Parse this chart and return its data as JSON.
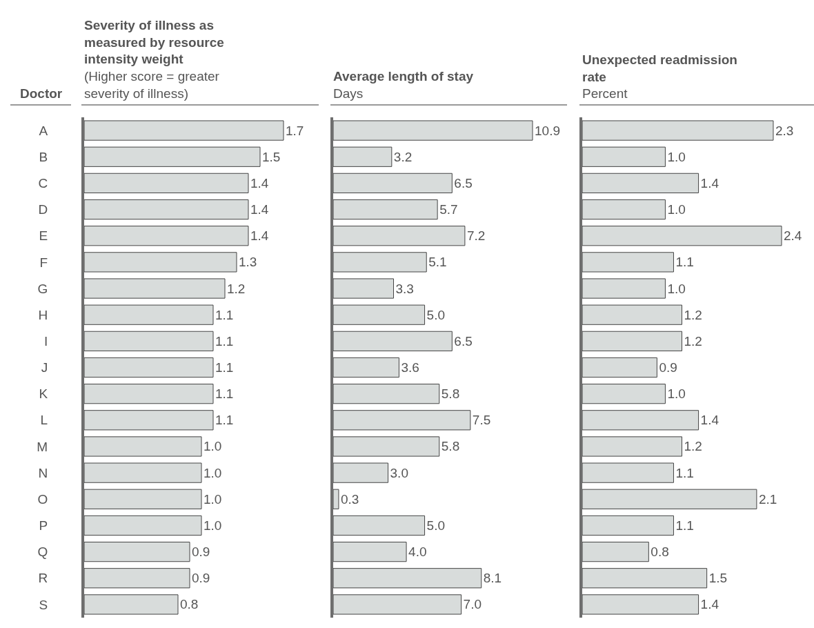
{
  "chart_data": [
    {
      "type": "bar",
      "orientation": "horizontal",
      "title": "Severity of illness as measured by resource intensity weight",
      "subtitle": "(Higher score = greater severity of illness)",
      "ylabel": "Doctor",
      "tick_labels": "y",
      "color": "#d8dcdb",
      "categories": [
        "A",
        "B",
        "C",
        "D",
        "E",
        "F",
        "G",
        "H",
        "I",
        "J",
        "K",
        "L",
        "M",
        "N",
        "O",
        "P",
        "Q",
        "R",
        "S"
      ],
      "values": [
        1.7,
        1.5,
        1.4,
        1.4,
        1.4,
        1.3,
        1.2,
        1.1,
        1.1,
        1.1,
        1.1,
        1.1,
        1.0,
        1.0,
        1.0,
        1.0,
        0.9,
        0.9,
        0.8
      ],
      "value_labels": [
        "1.7",
        "1.5",
        "1.4",
        "1.4",
        "1.4",
        "1.3",
        "1.2",
        "1.1",
        "1.1",
        "1.1",
        "1.1",
        "1.1",
        "1.0",
        "1.0",
        "1.0",
        "1.0",
        "0.9",
        "0.9",
        "0.8"
      ]
    },
    {
      "type": "bar",
      "orientation": "horizontal",
      "title": "Average length of stay",
      "subtitle": "Days",
      "tick_labels": false,
      "color": "#d8dcdb",
      "values": [
        10.9,
        3.2,
        6.5,
        5.7,
        7.2,
        5.1,
        3.3,
        5.0,
        6.5,
        3.6,
        5.8,
        7.5,
        5.8,
        3.0,
        0.3,
        5.0,
        4.0,
        8.1,
        7.0
      ],
      "value_labels": [
        "10.9",
        "3.2",
        "6.5",
        "5.7",
        "7.2",
        "5.1",
        "3.3",
        "5.0",
        "6.5",
        "3.6",
        "5.8",
        "7.5",
        "5.8",
        "3.0",
        "0.3",
        "5.0",
        "4.0",
        "8.1",
        "7.0"
      ]
    },
    {
      "type": "bar",
      "orientation": "horizontal",
      "title": "Unexpected readmission rate",
      "subtitle": "Percent",
      "tick_labels": false,
      "color": "#d8dcdb",
      "values": [
        2.3,
        1.0,
        1.4,
        1.0,
        2.4,
        1.1,
        1.0,
        1.2,
        1.2,
        0.9,
        1.0,
        1.4,
        1.2,
        1.1,
        2.1,
        1.1,
        0.8,
        1.5,
        1.4
      ],
      "value_labels": [
        "2.3",
        "1.0",
        "1.4",
        "1.0",
        "2.4",
        "1.1",
        "1.0",
        "1.2",
        "1.2",
        "0.9",
        "1.0",
        "1.4",
        "1.2",
        "1.1",
        "2.1",
        "1.1",
        "0.8",
        "1.5",
        "1.4"
      ]
    }
  ]
}
